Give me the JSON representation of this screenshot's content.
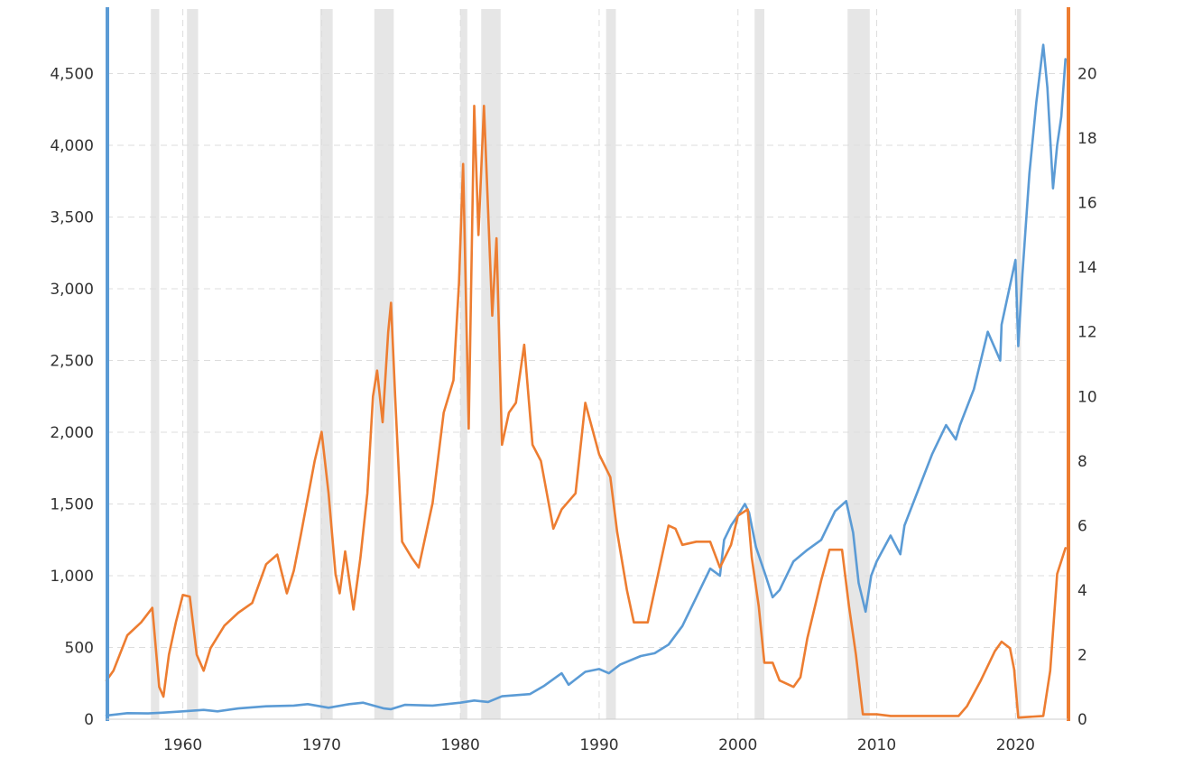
{
  "colors": {
    "primary_series": "#5b9bd5",
    "secondary_series": "#ed7d31",
    "recession": "#e6e6e6",
    "grid": "#dddddd"
  },
  "chart_data": {
    "type": "line",
    "title": "",
    "xlabel": "",
    "ylabel_left": "",
    "ylabel_right": "",
    "grid": true,
    "legend": "none",
    "xlim": [
      1954.5,
      2023.75
    ],
    "ylim_left": [
      0,
      4950
    ],
    "ylim_right": [
      0,
      22
    ],
    "x_ticks": [
      "1960",
      "1970",
      "1980",
      "1990",
      "2000",
      "2010",
      "2020"
    ],
    "y_ticks_left": [
      "0",
      "500",
      "1,000",
      "1,500",
      "2,000",
      "2,500",
      "3,000",
      "3,500",
      "4,000",
      "4,500"
    ],
    "y_ticks_right": [
      "0",
      "2",
      "4",
      "6",
      "8",
      "10",
      "12",
      "14",
      "16",
      "18",
      "20"
    ],
    "recession_bands": [
      [
        1957.7,
        1958.3
      ],
      [
        1960.3,
        1961.1
      ],
      [
        1969.9,
        1970.8
      ],
      [
        1973.8,
        1975.2
      ],
      [
        1980.0,
        1980.5
      ],
      [
        1981.5,
        1982.9
      ],
      [
        1990.5,
        1991.2
      ],
      [
        2001.2,
        2001.9
      ],
      [
        2007.9,
        2009.5
      ],
      [
        2020.1,
        2020.4
      ]
    ],
    "series": [
      {
        "axis": "left",
        "color": "#5b9bd5",
        "points": [
          [
            1954.5,
            26
          ],
          [
            1956,
            42
          ],
          [
            1957.5,
            40
          ],
          [
            1958.5,
            45
          ],
          [
            1960,
            55
          ],
          [
            1961.5,
            65
          ],
          [
            1962.5,
            55
          ],
          [
            1964,
            75
          ],
          [
            1966,
            90
          ],
          [
            1968,
            95
          ],
          [
            1969,
            105
          ],
          [
            1970.5,
            80
          ],
          [
            1972,
            105
          ],
          [
            1973,
            115
          ],
          [
            1974.5,
            75
          ],
          [
            1975,
            70
          ],
          [
            1976,
            100
          ],
          [
            1978,
            95
          ],
          [
            1980,
            115
          ],
          [
            1981,
            130
          ],
          [
            1982,
            120
          ],
          [
            1983,
            160
          ],
          [
            1985,
            175
          ],
          [
            1986,
            230
          ],
          [
            1987,
            300
          ],
          [
            1987.3,
            320
          ],
          [
            1987.8,
            240
          ],
          [
            1989,
            330
          ],
          [
            1990,
            350
          ],
          [
            1990.7,
            320
          ],
          [
            1991.5,
            380
          ],
          [
            1993,
            440
          ],
          [
            1994,
            460
          ],
          [
            1995,
            520
          ],
          [
            1996,
            650
          ],
          [
            1997,
            850
          ],
          [
            1998,
            1050
          ],
          [
            1998.7,
            1000
          ],
          [
            1999,
            1250
          ],
          [
            1999.5,
            1350
          ],
          [
            2000,
            1420
          ],
          [
            2000.5,
            1500
          ],
          [
            2000.8,
            1440
          ],
          [
            2001.3,
            1200
          ],
          [
            2002,
            1000
          ],
          [
            2002.5,
            850
          ],
          [
            2003,
            900
          ],
          [
            2004,
            1100
          ],
          [
            2005,
            1180
          ],
          [
            2006,
            1250
          ],
          [
            2007,
            1450
          ],
          [
            2007.8,
            1520
          ],
          [
            2008.3,
            1300
          ],
          [
            2008.7,
            950
          ],
          [
            2009.2,
            750
          ],
          [
            2009.6,
            1000
          ],
          [
            2010,
            1100
          ],
          [
            2011,
            1280
          ],
          [
            2011.7,
            1150
          ],
          [
            2012,
            1350
          ],
          [
            2013,
            1600
          ],
          [
            2014,
            1850
          ],
          [
            2015,
            2050
          ],
          [
            2015.7,
            1950
          ],
          [
            2016,
            2050
          ],
          [
            2017,
            2300
          ],
          [
            2018,
            2700
          ],
          [
            2018.9,
            2500
          ],
          [
            2019,
            2750
          ],
          [
            2020,
            3200
          ],
          [
            2020.2,
            2600
          ],
          [
            2020.5,
            3100
          ],
          [
            2021,
            3800
          ],
          [
            2021.5,
            4300
          ],
          [
            2022,
            4700
          ],
          [
            2022.3,
            4400
          ],
          [
            2022.7,
            3700
          ],
          [
            2023,
            4000
          ],
          [
            2023.3,
            4200
          ],
          [
            2023.6,
            4600
          ]
        ]
      },
      {
        "axis": "right",
        "color": "#ed7d31",
        "points": [
          [
            1954.5,
            1.2
          ],
          [
            1955,
            1.5
          ],
          [
            1956,
            2.6
          ],
          [
            1957,
            3.0
          ],
          [
            1957.8,
            3.45
          ],
          [
            1958.3,
            1.0
          ],
          [
            1958.6,
            0.7
          ],
          [
            1959,
            2.0
          ],
          [
            1959.5,
            3.0
          ],
          [
            1960,
            3.85
          ],
          [
            1960.5,
            3.8
          ],
          [
            1961,
            2.0
          ],
          [
            1961.5,
            1.5
          ],
          [
            1962,
            2.2
          ],
          [
            1963,
            2.9
          ],
          [
            1964,
            3.3
          ],
          [
            1965,
            3.6
          ],
          [
            1966,
            4.8
          ],
          [
            1966.8,
            5.1
          ],
          [
            1967.5,
            3.9
          ],
          [
            1968,
            4.6
          ],
          [
            1968.5,
            5.7
          ],
          [
            1969.5,
            8.0
          ],
          [
            1970,
            8.9
          ],
          [
            1970.5,
            7.0
          ],
          [
            1971,
            4.5
          ],
          [
            1971.3,
            3.9
          ],
          [
            1971.7,
            5.2
          ],
          [
            1972.3,
            3.4
          ],
          [
            1972.8,
            5.0
          ],
          [
            1973.3,
            7.0
          ],
          [
            1973.7,
            10.0
          ],
          [
            1974,
            10.8
          ],
          [
            1974.4,
            9.2
          ],
          [
            1974.8,
            12.0
          ],
          [
            1975,
            12.9
          ],
          [
            1975.3,
            10.0
          ],
          [
            1975.8,
            5.5
          ],
          [
            1976.5,
            5.0
          ],
          [
            1977,
            4.7
          ],
          [
            1978,
            6.7
          ],
          [
            1978.8,
            9.5
          ],
          [
            1979.5,
            10.5
          ],
          [
            1979.9,
            13.5
          ],
          [
            1980.2,
            17.2
          ],
          [
            1980.6,
            9.0
          ],
          [
            1981,
            19.0
          ],
          [
            1981.3,
            15.0
          ],
          [
            1981.7,
            19.0
          ],
          [
            1982.3,
            12.5
          ],
          [
            1982.6,
            14.9
          ],
          [
            1983,
            8.5
          ],
          [
            1983.5,
            9.5
          ],
          [
            1984,
            9.8
          ],
          [
            1984.6,
            11.6
          ],
          [
            1985.2,
            8.5
          ],
          [
            1985.8,
            8.0
          ],
          [
            1986.7,
            5.9
          ],
          [
            1987.3,
            6.5
          ],
          [
            1988.3,
            7.0
          ],
          [
            1989,
            9.8
          ],
          [
            1989.5,
            9.0
          ],
          [
            1990,
            8.2
          ],
          [
            1990.8,
            7.5
          ],
          [
            1991.3,
            5.8
          ],
          [
            1992,
            4.0
          ],
          [
            1992.5,
            3.0
          ],
          [
            1993,
            3.0
          ],
          [
            1993.5,
            3.0
          ],
          [
            1994.3,
            4.6
          ],
          [
            1995,
            6.0
          ],
          [
            1995.5,
            5.9
          ],
          [
            1996,
            5.4
          ],
          [
            1997,
            5.5
          ],
          [
            1998,
            5.5
          ],
          [
            1998.7,
            4.7
          ],
          [
            1999.5,
            5.4
          ],
          [
            2000,
            6.3
          ],
          [
            2000.7,
            6.5
          ],
          [
            2001,
            5.0
          ],
          [
            2001.5,
            3.5
          ],
          [
            2001.9,
            1.75
          ],
          [
            2002.5,
            1.75
          ],
          [
            2003,
            1.2
          ],
          [
            2004,
            1.0
          ],
          [
            2004.5,
            1.3
          ],
          [
            2005,
            2.5
          ],
          [
            2006,
            4.3
          ],
          [
            2006.6,
            5.25
          ],
          [
            2007.5,
            5.25
          ],
          [
            2008,
            3.5
          ],
          [
            2008.5,
            2.0
          ],
          [
            2009,
            0.15
          ],
          [
            2010,
            0.15
          ],
          [
            2011,
            0.1
          ],
          [
            2015.9,
            0.1
          ],
          [
            2016.5,
            0.4
          ],
          [
            2017.5,
            1.2
          ],
          [
            2018.5,
            2.1
          ],
          [
            2019,
            2.4
          ],
          [
            2019.6,
            2.2
          ],
          [
            2019.9,
            1.55
          ],
          [
            2020.2,
            0.05
          ],
          [
            2022,
            0.1
          ],
          [
            2022.5,
            1.5
          ],
          [
            2023,
            4.5
          ],
          [
            2023.6,
            5.3
          ]
        ]
      }
    ]
  }
}
